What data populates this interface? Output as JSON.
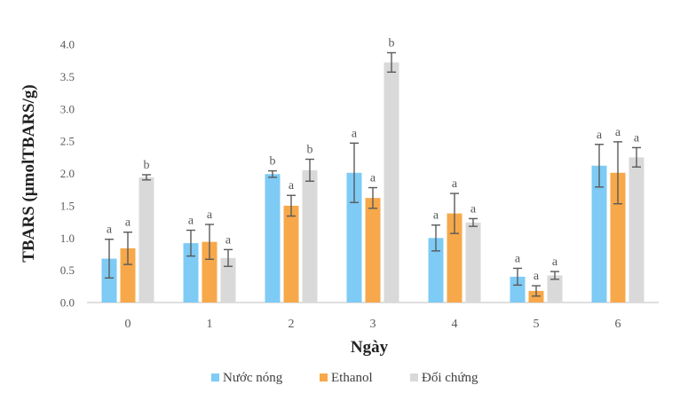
{
  "chart_data": {
    "type": "bar",
    "xlabel": "Ngày",
    "ylabel": "TBARS (µmolTBARS/g)",
    "ylim": [
      0,
      4.0
    ],
    "yticks": [
      "0.0",
      "0.5",
      "1.0",
      "1.5",
      "2.0",
      "2.5",
      "3.0",
      "3.5",
      "4.0"
    ],
    "grid": false,
    "legend_position": "bottom",
    "categories": [
      "0",
      "1",
      "2",
      "3",
      "4",
      "5",
      "6"
    ],
    "series": [
      {
        "name": "Nước nóng",
        "color": "#7ecbf5",
        "values": [
          0.68,
          0.92,
          1.99,
          2.01,
          1.0,
          0.4,
          2.12
        ],
        "errors": [
          0.3,
          0.2,
          0.05,
          0.46,
          0.2,
          0.13,
          0.33
        ],
        "letters": [
          "a",
          "a",
          "b",
          "a",
          "a",
          "a",
          "a"
        ]
      },
      {
        "name": "Ethanol",
        "color": "#f7a84a",
        "values": [
          0.84,
          0.94,
          1.5,
          1.62,
          1.38,
          0.18,
          2.01
        ],
        "errors": [
          0.25,
          0.27,
          0.16,
          0.16,
          0.31,
          0.08,
          0.48
        ],
        "letters": [
          "a",
          "a",
          "a",
          "a",
          "a",
          "a",
          "a"
        ]
      },
      {
        "name": "Đối chứng",
        "color": "#d9d9d9",
        "values": [
          1.94,
          0.69,
          2.05,
          3.72,
          1.24,
          0.42,
          2.25
        ],
        "errors": [
          0.04,
          0.13,
          0.17,
          0.15,
          0.06,
          0.06,
          0.15
        ],
        "letters": [
          "b",
          "a",
          "b",
          "b",
          "a",
          "a",
          "a"
        ]
      }
    ],
    "error_bar_color": "#5a5a5a"
  }
}
